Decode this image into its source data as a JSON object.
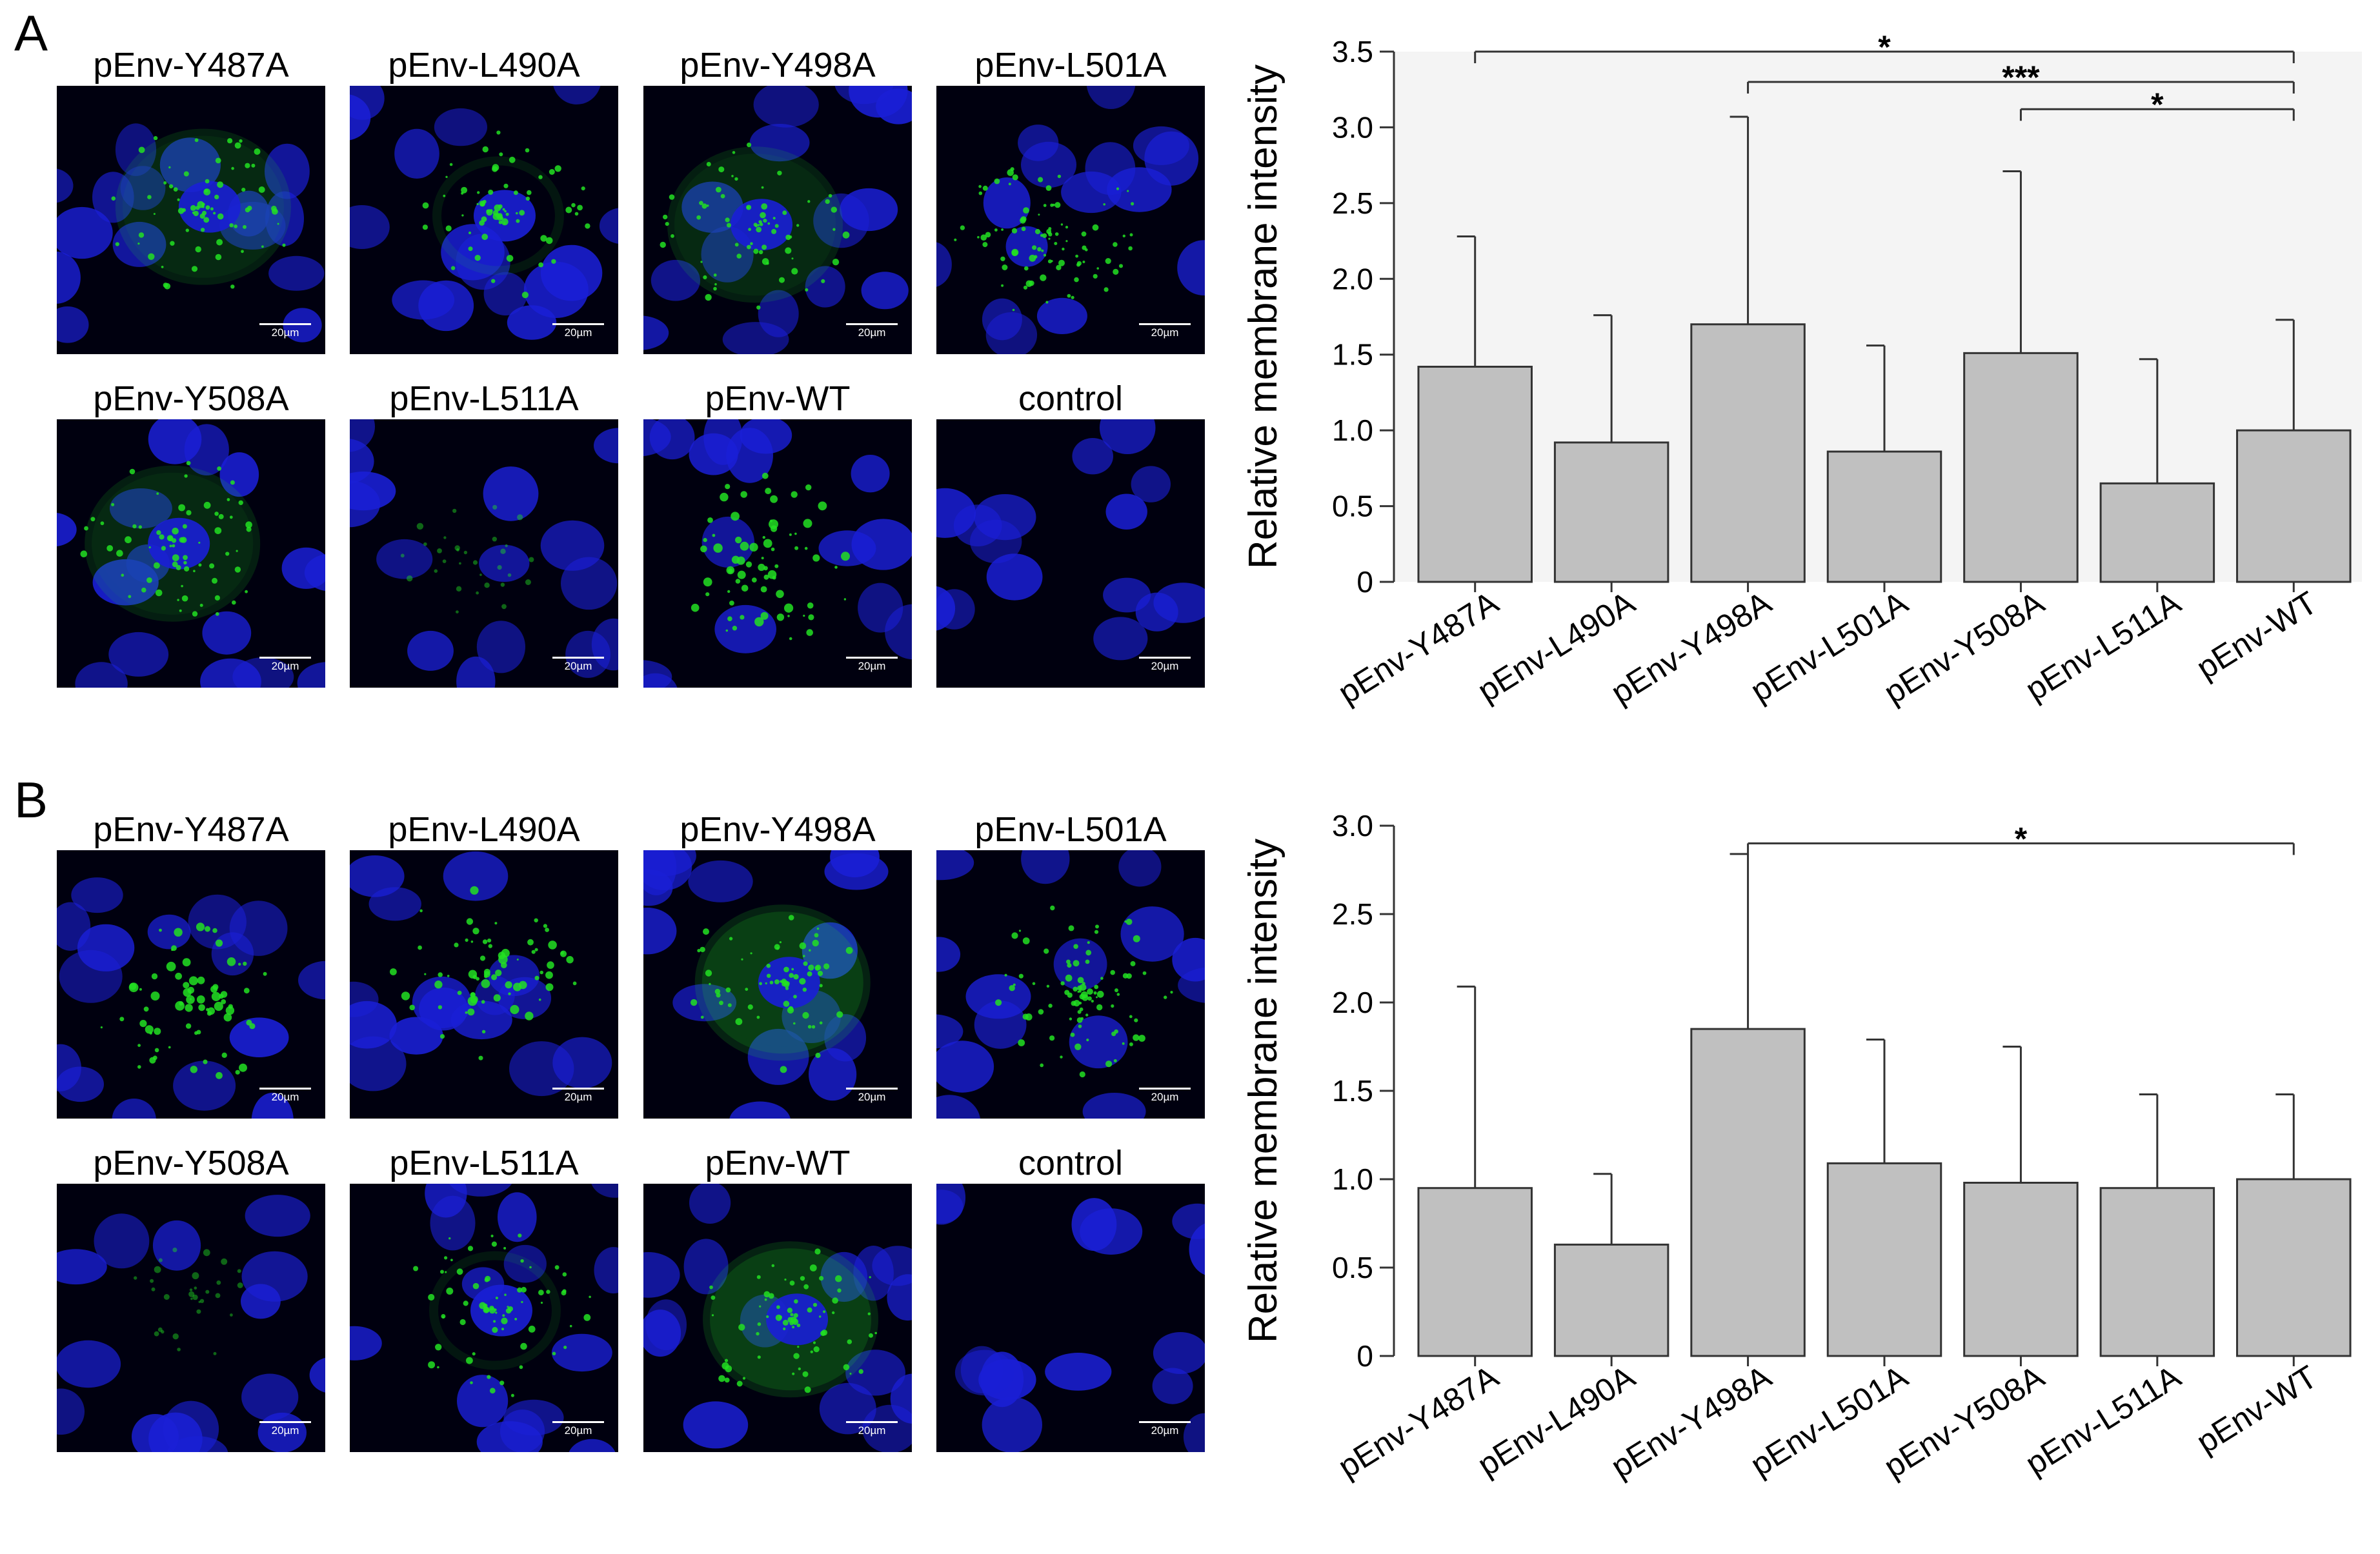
{
  "panel_A": {
    "letter": "A",
    "images": [
      {
        "label": "pEnv-Y487A",
        "scale": "20µm",
        "cells": "large-bright"
      },
      {
        "label": "pEnv-L490A",
        "scale": "20µm",
        "cells": "ring"
      },
      {
        "label": "pEnv-Y498A",
        "scale": "20µm",
        "cells": "large-bright"
      },
      {
        "label": "pEnv-L501A",
        "scale": "20µm",
        "cells": "diffuse"
      },
      {
        "label": "pEnv-Y508A",
        "scale": "20µm",
        "cells": "large-bright"
      },
      {
        "label": "pEnv-L511A",
        "scale": "20µm",
        "cells": "faint"
      },
      {
        "label": "pEnv-WT",
        "scale": "20µm",
        "cells": "dots"
      },
      {
        "label": "control",
        "scale": "20µm",
        "cells": "none"
      }
    ]
  },
  "panel_B": {
    "letter": "B",
    "images": [
      {
        "label": "pEnv-Y487A",
        "scale": "20µm",
        "cells": "dots"
      },
      {
        "label": "pEnv-L490A",
        "scale": "20µm",
        "cells": "dots"
      },
      {
        "label": "pEnv-Y498A",
        "scale": "20µm",
        "cells": "large-diffuse"
      },
      {
        "label": "pEnv-L501A",
        "scale": "20µm",
        "cells": "diffuse"
      },
      {
        "label": "pEnv-Y508A",
        "scale": "20µm",
        "cells": "faint"
      },
      {
        "label": "pEnv-L511A",
        "scale": "20µm",
        "cells": "ring"
      },
      {
        "label": "pEnv-WT",
        "scale": "20µm",
        "cells": "large-diffuse"
      },
      {
        "label": "control",
        "scale": "20µm",
        "cells": "none"
      }
    ]
  },
  "colors": {
    "bar_fill": "#c0c0c0",
    "bar_stroke": "#333333",
    "nucleus": "#1a1fd6",
    "signal": "#22e022",
    "background": "#00000f",
    "plot_bg_A": "#f4f4f4"
  },
  "chart_data": [
    {
      "type": "bar",
      "panel": "A",
      "title": "",
      "xlabel": "",
      "ylabel": "Relative membrane intensity",
      "categories": [
        "pEnv-Y487A",
        "pEnv-L490A",
        "pEnv-Y498A",
        "pEnv-L501A",
        "pEnv-Y508A",
        "pEnv-L511A",
        "pEnv-WT"
      ],
      "values": [
        1.42,
        0.92,
        1.7,
        0.86,
        1.51,
        0.65,
        1.0
      ],
      "error_upper": [
        2.28,
        1.76,
        3.07,
        1.56,
        2.71,
        1.47,
        1.73
      ],
      "ylim": [
        0,
        3.5
      ],
      "yticks": [
        0,
        0.5,
        1.0,
        1.5,
        2.0,
        2.5,
        3.0,
        3.5
      ],
      "ytick_labels": [
        "0",
        "0.5",
        "1.0",
        "1.5",
        "2.0",
        "2.5",
        "3.0",
        "3.5"
      ],
      "grid": false,
      "significance": [
        {
          "from": "pEnv-Y487A",
          "to": "pEnv-WT",
          "label": "*",
          "y": 3.5
        },
        {
          "from": "pEnv-Y498A",
          "to": "pEnv-WT",
          "label": "***",
          "y": 3.3
        },
        {
          "from": "pEnv-Y508A",
          "to": "pEnv-WT",
          "label": "*",
          "y": 3.12
        }
      ]
    },
    {
      "type": "bar",
      "panel": "B",
      "title": "",
      "xlabel": "",
      "ylabel": "Relative membrane intensity",
      "categories": [
        "pEnv-Y487A",
        "pEnv-L490A",
        "pEnv-Y498A",
        "pEnv-L501A",
        "pEnv-Y508A",
        "pEnv-L511A",
        "pEnv-WT"
      ],
      "values": [
        0.95,
        0.63,
        1.85,
        1.09,
        0.98,
        0.95,
        1.0
      ],
      "error_upper": [
        2.09,
        1.03,
        2.84,
        1.79,
        1.75,
        1.48,
        1.48
      ],
      "ylim": [
        0,
        3.0
      ],
      "yticks": [
        0,
        0.5,
        1.0,
        1.5,
        2.0,
        2.5,
        3.0
      ],
      "ytick_labels": [
        "0",
        "0.5",
        "1.0",
        "1.5",
        "2.0",
        "2.5",
        "3.0"
      ],
      "grid": false,
      "significance": [
        {
          "from": "pEnv-Y498A",
          "to": "pEnv-WT",
          "label": "*",
          "y": 2.9
        }
      ]
    }
  ]
}
